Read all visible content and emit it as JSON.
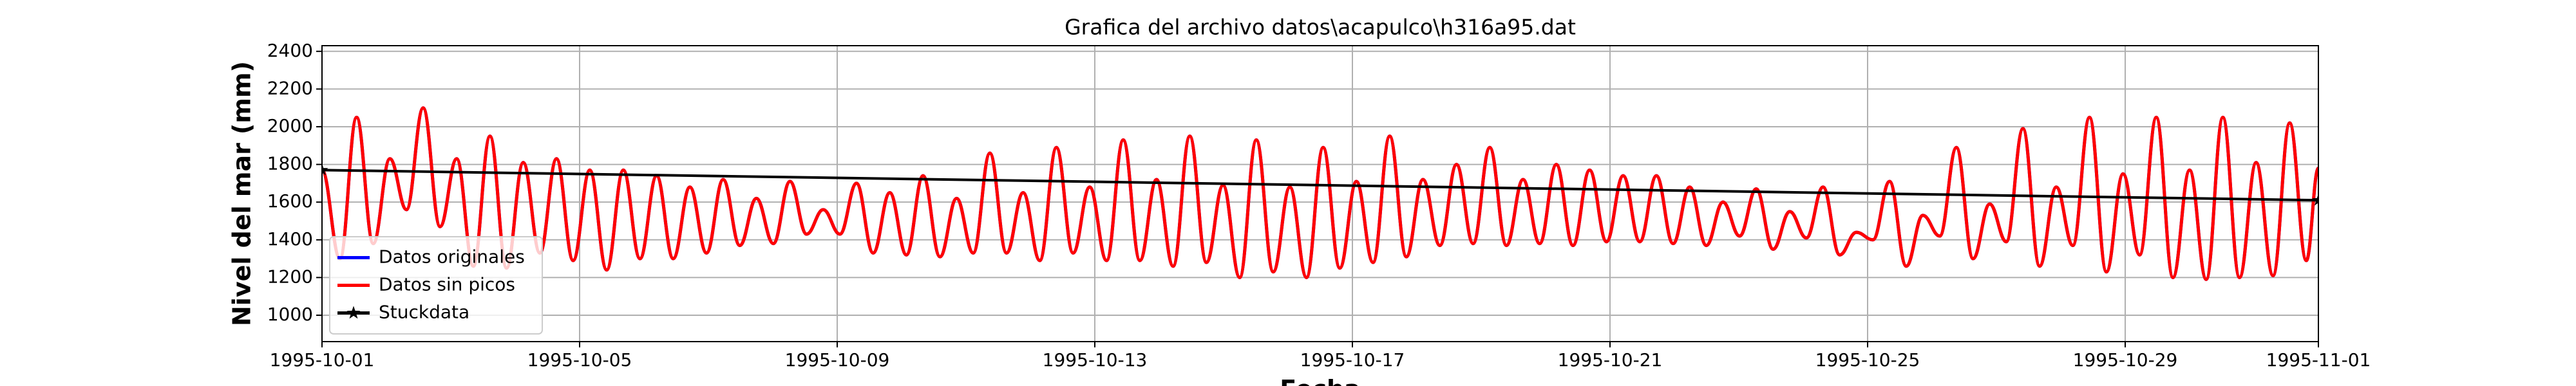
{
  "chart_data": {
    "type": "line",
    "title": "Grafica del archivo datos\\acapulco\\h316a95.dat",
    "x_label": "Fecha",
    "y_label": "Nivel del mar (mm)",
    "x": [
      0,
      6.7,
      12.9,
      19.1,
      25.3,
      31.5,
      37.7,
      44.0,
      50.2,
      56.4,
      62.6,
      68.8,
      75.0,
      81.2,
      87.4,
      93.6,
      99.8,
      106.1,
      112.3,
      118.5,
      124.7,
      130.9,
      137.1,
      143.3,
      149.5,
      155.7,
      161.9,
      168.2,
      174.4,
      180.6,
      186.8,
      193.0,
      199.2,
      205.4,
      211.6,
      217.8,
      224.0,
      230.3,
      236.5,
      242.7,
      248.9,
      255.1,
      261.3,
      267.5,
      273.7,
      279.9,
      286.1,
      292.4,
      298.6,
      304.8,
      311.0,
      317.2,
      323.4,
      329.6,
      335.8,
      342.0,
      348.2,
      354.5,
      360.7,
      366.9,
      373.1,
      379.3,
      385.5,
      391.7,
      397.9,
      404.1,
      410.3,
      416.6,
      422.8,
      429.0,
      435.2,
      441.4,
      447.6,
      453.8,
      460.0,
      466.2,
      472.4,
      478.7,
      484.9,
      491.1,
      497.3,
      503.5,
      509.7,
      515.9,
      522.1,
      528.3,
      534.5,
      540.8,
      547.0,
      553.2,
      559.4,
      565.6,
      571.8,
      578.0,
      584.2,
      590.4,
      596.6,
      602.9,
      609.1,
      615.3,
      621.5,
      627.7,
      633.9,
      640.1,
      646.3,
      652.5,
      658.7,
      665.0,
      671.2,
      677.4,
      683.6,
      689.8,
      696.0,
      702.2,
      708.4,
      714.6,
      720.8,
      727.1,
      733.3,
      739.5,
      744
    ],
    "series": [
      {
        "name": "Datos originales",
        "color": "#0000ff",
        "values": [
          1770,
          1300,
          2050,
          1380,
          1830,
          1560,
          2100,
          1470,
          1830,
          1260,
          1950,
          1250,
          1810,
          1330,
          1830,
          1290,
          1770,
          1240,
          1770,
          1300,
          1740,
          1300,
          1680,
          1330,
          1720,
          1370,
          1620,
          1380,
          1710,
          1430,
          1560,
          1430,
          1700,
          1330,
          1650,
          1320,
          1740,
          1310,
          1620,
          1330,
          1860,
          1330,
          1650,
          1290,
          1890,
          1330,
          1680,
          1290,
          1930,
          1290,
          1720,
          1260,
          1950,
          1280,
          1690,
          1200,
          1930,
          1230,
          1680,
          1200,
          1890,
          1250,
          1710,
          1280,
          1950,
          1310,
          1720,
          1370,
          1800,
          1380,
          1890,
          1370,
          1720,
          1380,
          1800,
          1370,
          1770,
          1390,
          1740,
          1390,
          1740,
          1380,
          1680,
          1370,
          1600,
          1420,
          1670,
          1350,
          1550,
          1410,
          1680,
          1320,
          1440,
          1400,
          1710,
          1260,
          1530,
          1420,
          1890,
          1300,
          1590,
          1390,
          1990,
          1260,
          1680,
          1370,
          2050,
          1230,
          1750,
          1320,
          2050,
          1200,
          1770,
          1190,
          2050,
          1200,
          1810,
          1210,
          2020,
          1290,
          1780
        ]
      },
      {
        "name": "Datos sin picos",
        "color": "#ff0000",
        "values": [
          1770,
          1300,
          2050,
          1380,
          1830,
          1560,
          2100,
          1470,
          1830,
          1260,
          1950,
          1250,
          1810,
          1330,
          1830,
          1290,
          1770,
          1240,
          1770,
          1300,
          1740,
          1300,
          1680,
          1330,
          1720,
          1370,
          1620,
          1380,
          1710,
          1430,
          1560,
          1430,
          1700,
          1330,
          1650,
          1320,
          1740,
          1310,
          1620,
          1330,
          1860,
          1330,
          1650,
          1290,
          1890,
          1330,
          1680,
          1290,
          1930,
          1290,
          1720,
          1260,
          1950,
          1280,
          1690,
          1200,
          1930,
          1230,
          1680,
          1200,
          1890,
          1250,
          1710,
          1280,
          1950,
          1310,
          1720,
          1370,
          1800,
          1380,
          1890,
          1370,
          1720,
          1380,
          1800,
          1370,
          1770,
          1390,
          1740,
          1390,
          1740,
          1380,
          1680,
          1370,
          1600,
          1420,
          1670,
          1350,
          1550,
          1410,
          1680,
          1320,
          1440,
          1400,
          1710,
          1260,
          1530,
          1420,
          1890,
          1300,
          1590,
          1390,
          1990,
          1260,
          1680,
          1370,
          2050,
          1230,
          1750,
          1320,
          2050,
          1200,
          1770,
          1190,
          2050,
          1200,
          1810,
          1210,
          2020,
          1290,
          1780
        ]
      }
    ],
    "trend": {
      "name": "Stuckdata",
      "color": "#000000",
      "marker": "*",
      "x": [
        0,
        744
      ],
      "values": [
        1770,
        1610
      ]
    },
    "xlim": [
      0,
      744
    ],
    "xticks": [
      {
        "value": 0,
        "label": "1995-10-01"
      },
      {
        "value": 96,
        "label": "1995-10-05"
      },
      {
        "value": 192,
        "label": "1995-10-09"
      },
      {
        "value": 288,
        "label": "1995-10-13"
      },
      {
        "value": 384,
        "label": "1995-10-17"
      },
      {
        "value": 480,
        "label": "1995-10-21"
      },
      {
        "value": 576,
        "label": "1995-10-25"
      },
      {
        "value": 672,
        "label": "1995-10-29"
      },
      {
        "value": 744,
        "label": "1995-11-01"
      }
    ],
    "ylim": [
      860,
      2430
    ],
    "yticks": [
      1000,
      1200,
      1400,
      1600,
      1800,
      2000,
      2200,
      2400
    ],
    "grid": true,
    "legend": "lower left"
  }
}
